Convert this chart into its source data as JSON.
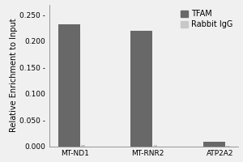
{
  "categories": [
    "MT-ND1",
    "MT-RNR2",
    "ATP2A2"
  ],
  "tfam_values": [
    0.232,
    0.22,
    0.008
  ],
  "igg_values": [
    0.002,
    0.002,
    0.001
  ],
  "bar_color_tfam": "#686868",
  "bar_color_igg": "#c8c8c8",
  "ylabel": "Relative Enrichment to Input",
  "ylim": [
    0,
    0.27
  ],
  "yticks": [
    0.0,
    0.05,
    0.1,
    0.15,
    0.2,
    0.25
  ],
  "ytick_labels": [
    "0.000",
    "0.050 -",
    "0.100",
    "0.150 -",
    "0.200",
    "0.250 -"
  ],
  "legend_tfam": "TFAM",
  "legend_igg": "Rabbit IgG",
  "tfam_bar_width": 0.3,
  "igg_bar_width": 0.05,
  "background_color": "#f0f0f0",
  "tick_fontsize": 6.5,
  "label_fontsize": 7,
  "legend_fontsize": 7
}
